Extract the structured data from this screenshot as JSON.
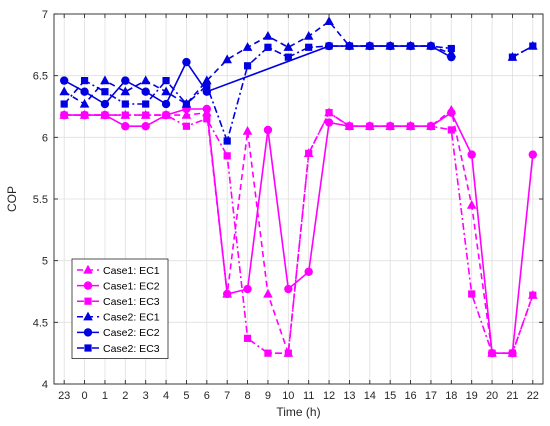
{
  "chart_data": {
    "type": "line",
    "xlabel": "Time (h)",
    "ylabel": "COP",
    "ylim": [
      4,
      7
    ],
    "yticks": [
      4,
      4.5,
      5,
      5.5,
      6,
      6.5,
      7
    ],
    "ytick_labels": [
      "4",
      "4.5",
      "5",
      "5.5",
      "6",
      "6.5",
      "7"
    ],
    "grid": true,
    "legend_position": "lower-left",
    "categories": [
      "23",
      "0",
      "1",
      "2",
      "3",
      "4",
      "5",
      "6",
      "7",
      "8",
      "9",
      "10",
      "11",
      "12",
      "13",
      "14",
      "15",
      "16",
      "17",
      "18",
      "19",
      "20",
      "21",
      "22"
    ],
    "series": [
      {
        "name": "Case1: EC1",
        "color": "#ff00ff",
        "marker": "triangle",
        "dash": "6,4",
        "values": [
          6.18,
          6.18,
          6.18,
          6.18,
          6.18,
          6.18,
          6.18,
          6.2,
          4.73,
          6.05,
          4.73,
          4.25,
          5.87,
          6.2,
          6.09,
          6.09,
          6.09,
          6.09,
          6.09,
          6.22,
          5.45,
          4.25,
          4.25,
          4.72
        ]
      },
      {
        "name": "Case1: EC2",
        "color": "#ff00ff",
        "marker": "circle",
        "dash": "",
        "values": [
          6.18,
          6.18,
          6.18,
          6.09,
          6.09,
          6.18,
          6.23,
          6.23,
          4.73,
          4.77,
          6.06,
          4.77,
          4.91,
          6.12,
          6.09,
          6.09,
          6.09,
          6.09,
          6.09,
          6.2,
          5.86,
          4.25,
          4.25,
          5.86
        ]
      },
      {
        "name": "Case1: EC3",
        "color": "#ff00ff",
        "marker": "square",
        "dash": "7,3,2,3",
        "values": [
          6.18,
          6.18,
          6.18,
          6.18,
          6.18,
          6.18,
          6.09,
          6.15,
          5.85,
          4.37,
          4.25,
          4.25,
          5.87,
          6.2,
          6.09,
          6.09,
          6.09,
          6.09,
          6.09,
          6.06,
          4.73,
          4.25,
          4.25,
          4.72
        ]
      },
      {
        "name": "Case2: EC1",
        "color": "#0000e0",
        "marker": "triangle",
        "dash": "6,4",
        "values": [
          6.37,
          6.27,
          6.46,
          6.37,
          6.46,
          6.37,
          6.27,
          6.46,
          6.63,
          6.73,
          6.82,
          6.73,
          6.82,
          6.94,
          6.74,
          6.74,
          6.74,
          6.74,
          6.74,
          6.68,
          null,
          null,
          6.65,
          6.74
        ]
      },
      {
        "name": "Case2: EC2",
        "color": "#0000e0",
        "marker": "circle",
        "dash": "",
        "values": [
          6.46,
          6.37,
          6.27,
          6.46,
          6.37,
          6.27,
          6.61,
          6.37,
          null,
          null,
          null,
          null,
          null,
          6.74,
          6.74,
          6.74,
          6.74,
          6.74,
          6.74,
          6.65,
          null,
          null,
          null,
          null
        ]
      },
      {
        "name": "Case2: EC3",
        "color": "#0000e0",
        "marker": "square",
        "dash": "7,3,2,3",
        "values": [
          6.27,
          6.46,
          6.37,
          6.27,
          6.27,
          6.46,
          6.27,
          6.42,
          5.97,
          6.58,
          6.73,
          6.65,
          6.73,
          6.74,
          6.74,
          6.74,
          6.74,
          6.74,
          6.74,
          6.72,
          null,
          null,
          6.65,
          6.74
        ]
      }
    ]
  }
}
